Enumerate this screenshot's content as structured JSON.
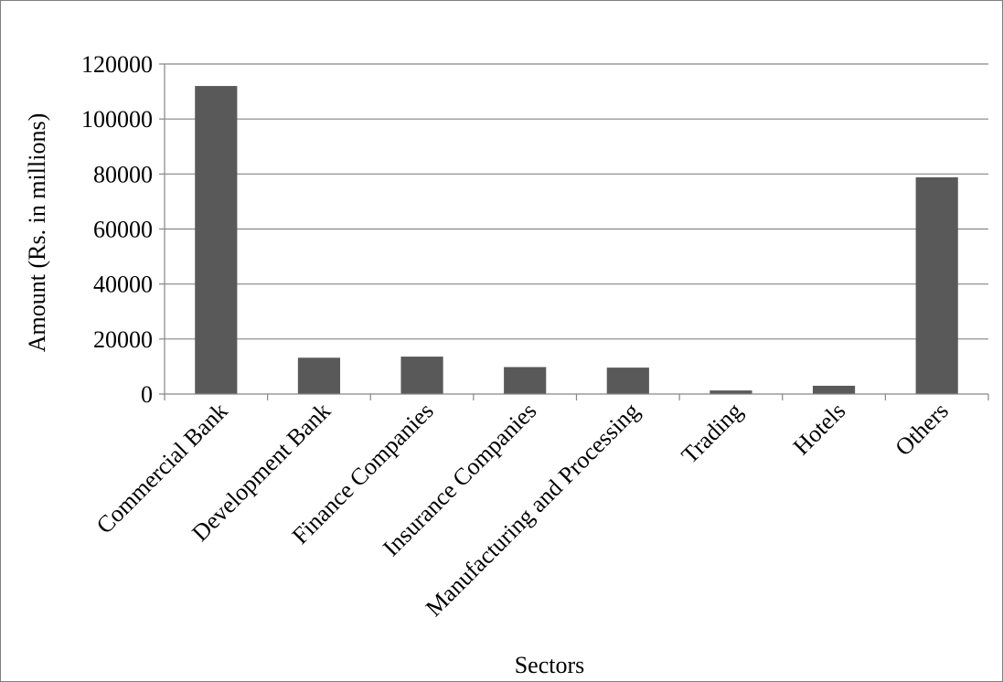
{
  "chart_data": {
    "type": "bar",
    "title": "",
    "xlabel": "Sectors",
    "ylabel": "Amount (Rs. in millions)",
    "categories": [
      "Commercial Bank",
      "Development Bank",
      "Finance Companies",
      "Insurance Companies",
      "Manufacturing and Processing",
      "Trading",
      "Hotels",
      "Others"
    ],
    "values": [
      112000,
      13200,
      13600,
      9800,
      9600,
      1300,
      3000,
      78800
    ],
    "ylim": [
      0,
      120000
    ],
    "yticks": [
      "0",
      "20000",
      "40000",
      "60000",
      "80000",
      "100000",
      "120000"
    ],
    "grid": true,
    "legend": "none",
    "bar_color": "#595959",
    "grid_color": "#868686"
  }
}
